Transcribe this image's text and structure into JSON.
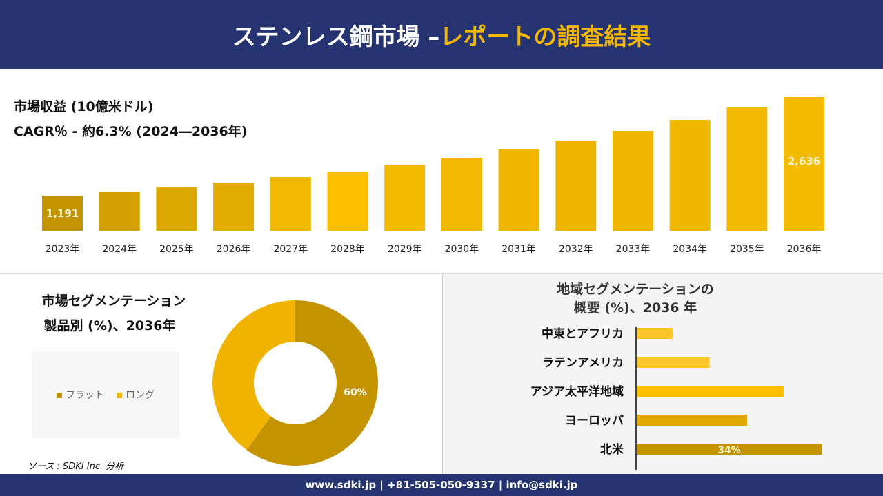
{
  "header": {
    "title_main": "ステンレス鋼市場 –",
    "title_accent": "レポートの調査結果"
  },
  "revenue": {
    "label": "市場収益 (10億米ドル)",
    "cagr": "CAGR％ - 約6.3% (2024―2036年)"
  },
  "chart_data": [
    {
      "type": "bar",
      "title": "",
      "categories": [
        "2023年",
        "2024年",
        "2025年",
        "2026年",
        "2027年",
        "2028年",
        "2029年",
        "2030年",
        "2031年",
        "2032年",
        "2033年",
        "2034年",
        "2035年",
        "2036年"
      ],
      "values": [
        1191,
        1251,
        1312,
        1383,
        1464,
        1545,
        1646,
        1747,
        1878,
        2000,
        2141,
        2302,
        2484,
        2636
      ],
      "data_labels": {
        "0": "1,191",
        "13": "2,636"
      },
      "ylim": [
        677,
        2700
      ],
      "grid": false,
      "colors": [
        "#c49400",
        "#d2a000",
        "#dba700",
        "#e2ac00",
        "#f0b800",
        "#fbbf00",
        "#f5bb00",
        "#f2b800",
        "#f0b600",
        "#eeb500",
        "#efb600",
        "#f0b700",
        "#f2b900",
        "#f4bb00"
      ]
    },
    {
      "type": "pie",
      "title": "市場セグメンテーション 製品別 (%)、2036年",
      "title_line1": "市場セグメンテーション",
      "title_line2": "製品別 (%)、2036年",
      "categories": [
        "フラット",
        "ロング"
      ],
      "values": [
        60,
        40
      ],
      "data_labels": [
        "60%",
        ""
      ],
      "colors": [
        "#c49400",
        "#f0b400"
      ],
      "legend": "left"
    },
    {
      "type": "bar",
      "orientation": "horizontal",
      "title": "地域セグメンテーションの 概要 (%)、2036 年",
      "title_line1": "地域セグメンテーションの",
      "title_line2": "概要 (%)、2036 年",
      "categories": [
        "中東とアフリカ",
        "ラテンアメリカ",
        "アジア太平洋地域",
        "ヨーロッパ",
        "北米"
      ],
      "values": [
        6.6,
        13.4,
        27,
        20.3,
        34
      ],
      "data_labels": [
        "",
        "",
        "",
        "",
        "34%"
      ],
      "colors": [
        "#fcc52a",
        "#fcc52a",
        "#fbbf00",
        "#e0aa00",
        "#c49400"
      ]
    }
  ],
  "source": "ソース : SDKI Inc. 分析",
  "footer": "www.sdki.jp | +81-505-050-9337 | info@sdki.jp"
}
